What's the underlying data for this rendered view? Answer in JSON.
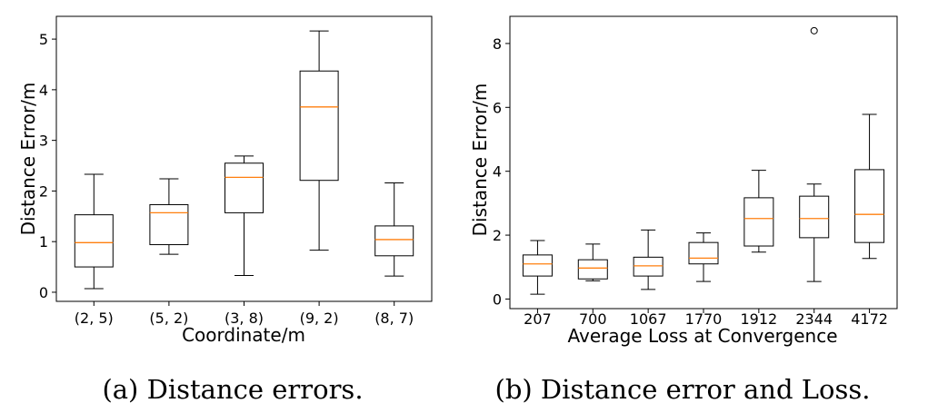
{
  "chart_data": [
    {
      "type": "box",
      "xlabel": "Coordinate/m",
      "ylabel": "Distance Error/m",
      "caption": "(a) Distance errors.",
      "ylim": [
        -0.18,
        5.45
      ],
      "yticks": [
        "0",
        "1",
        "2",
        "3",
        "4",
        "5"
      ],
      "grid": false,
      "median_color": "#ff7f0e",
      "categories": [
        "(2, 5)",
        "(5, 2)",
        "(3, 8)",
        "(9, 2)",
        "(8, 7)"
      ],
      "boxes": [
        {
          "whislo": 0.07,
          "q1": 0.5,
          "med": 0.98,
          "q3": 1.53,
          "whishi": 2.33,
          "fliers": []
        },
        {
          "whislo": 0.75,
          "q1": 0.94,
          "med": 1.57,
          "q3": 1.73,
          "whishi": 2.24,
          "fliers": []
        },
        {
          "whislo": 0.33,
          "q1": 1.57,
          "med": 2.27,
          "q3": 2.55,
          "whishi": 2.69,
          "fliers": []
        },
        {
          "whislo": 0.83,
          "q1": 2.21,
          "med": 3.66,
          "q3": 4.37,
          "whishi": 5.16,
          "fliers": []
        },
        {
          "whislo": 0.32,
          "q1": 0.72,
          "med": 1.04,
          "q3": 1.31,
          "whishi": 2.16,
          "fliers": []
        }
      ]
    },
    {
      "type": "box",
      "xlabel": "Average Loss at Convergence",
      "ylabel": "Distance Error/m",
      "caption": "(b) Distance error and Loss.",
      "ylim": [
        -0.3,
        8.85
      ],
      "yticks": [
        "0",
        "2",
        "4",
        "6",
        "8"
      ],
      "grid": false,
      "median_color": "#ff7f0e",
      "categories": [
        "207",
        "700",
        "1067",
        "1770",
        "1912",
        "2344",
        "4172"
      ],
      "boxes": [
        {
          "whislo": 0.15,
          "q1": 0.72,
          "med": 1.1,
          "q3": 1.38,
          "whishi": 1.83,
          "fliers": []
        },
        {
          "whislo": 0.57,
          "q1": 0.63,
          "med": 0.97,
          "q3": 1.23,
          "whishi": 1.72,
          "fliers": []
        },
        {
          "whislo": 0.3,
          "q1": 0.72,
          "med": 1.04,
          "q3": 1.31,
          "whishi": 2.16,
          "fliers": []
        },
        {
          "whislo": 0.55,
          "q1": 1.1,
          "med": 1.28,
          "q3": 1.77,
          "whishi": 2.07,
          "fliers": []
        },
        {
          "whislo": 1.47,
          "q1": 1.66,
          "med": 2.52,
          "q3": 3.17,
          "whishi": 4.03,
          "fliers": []
        },
        {
          "whislo": 0.55,
          "q1": 1.92,
          "med": 2.52,
          "q3": 3.22,
          "whishi": 3.6,
          "fliers": [
            8.4
          ]
        },
        {
          "whislo": 1.27,
          "q1": 1.77,
          "med": 2.65,
          "q3": 4.05,
          "whishi": 5.78,
          "fliers": []
        }
      ]
    }
  ]
}
